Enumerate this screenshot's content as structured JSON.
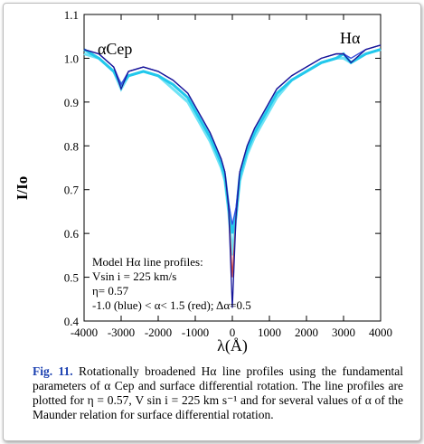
{
  "chart_data": {
    "type": "line",
    "x_label": "λ(Å)",
    "y_label": "I/Io",
    "annotations": [
      "αCep",
      "Hα"
    ],
    "note": [
      "Model Hα line profiles:",
      "Vsin i = 225 km/s",
      "η= 0.57",
      "-1.0 (blue) < α< 1.5 (red); Δα=0.5"
    ],
    "x": [
      -4000,
      -3600,
      -3200,
      -3000,
      -2800,
      -2400,
      -2000,
      -1600,
      -1200,
      -1000,
      -800,
      -600,
      -400,
      -300,
      -200,
      -100,
      0,
      100,
      200,
      300,
      400,
      600,
      800,
      1000,
      1200,
      1600,
      2000,
      2400,
      2800,
      3000,
      3200,
      3600,
      4000
    ],
    "series": [
      {
        "color": "#6fe3f5",
        "values": [
          1.01,
          1.0,
          0.97,
          0.93,
          0.96,
          0.97,
          0.96,
          0.93,
          0.9,
          0.87,
          0.84,
          0.81,
          0.77,
          0.75,
          0.72,
          0.65,
          0.55,
          0.64,
          0.72,
          0.75,
          0.78,
          0.82,
          0.85,
          0.88,
          0.91,
          0.95,
          0.97,
          0.99,
          1.0,
          1.0,
          0.99,
          1.01,
          1.02
        ]
      },
      {
        "color": "#22c8ec",
        "values": [
          1.02,
          1.0,
          0.97,
          0.94,
          0.96,
          0.97,
          0.96,
          0.94,
          0.91,
          0.88,
          0.85,
          0.82,
          0.78,
          0.76,
          0.73,
          0.66,
          0.6,
          0.64,
          0.73,
          0.76,
          0.79,
          0.83,
          0.86,
          0.89,
          0.92,
          0.95,
          0.97,
          0.99,
          1.0,
          1.01,
          0.99,
          1.01,
          1.02
        ]
      },
      {
        "color": "#c84848",
        "values": [
          1.02,
          1.01,
          0.98,
          0.94,
          0.97,
          0.98,
          0.97,
          0.95,
          0.92,
          0.89,
          0.86,
          0.83,
          0.79,
          0.77,
          0.74,
          0.66,
          0.5,
          0.64,
          0.74,
          0.77,
          0.8,
          0.84,
          0.87,
          0.9,
          0.93,
          0.96,
          0.98,
          1.0,
          1.01,
          1.01,
          1.0,
          1.02,
          1.03
        ]
      },
      {
        "color": "#3050e8",
        "values": [
          1.02,
          1.01,
          0.98,
          0.94,
          0.97,
          0.98,
          0.97,
          0.95,
          0.92,
          0.89,
          0.86,
          0.83,
          0.79,
          0.77,
          0.74,
          0.67,
          0.62,
          0.66,
          0.74,
          0.77,
          0.8,
          0.84,
          0.87,
          0.9,
          0.93,
          0.96,
          0.98,
          1.0,
          1.01,
          1.01,
          1.0,
          1.02,
          1.03
        ]
      },
      {
        "color": "#16169a",
        "values": [
          1.02,
          1.01,
          0.98,
          0.93,
          0.97,
          0.98,
          0.97,
          0.95,
          0.92,
          0.89,
          0.86,
          0.83,
          0.79,
          0.77,
          0.74,
          0.66,
          0.43,
          0.64,
          0.74,
          0.77,
          0.8,
          0.84,
          0.87,
          0.9,
          0.93,
          0.96,
          0.98,
          1.0,
          1.01,
          1.01,
          0.99,
          1.02,
          1.03
        ]
      }
    ],
    "xlim": [
      -4000,
      4000
    ],
    "xticks": [
      -4000,
      -3000,
      -2000,
      -1000,
      0,
      1000,
      2000,
      3000,
      4000
    ],
    "ylim": [
      0.4,
      1.1
    ],
    "yticks": [
      0.4,
      0.5,
      0.6,
      0.7,
      0.8,
      0.9,
      {
        "value": 1,
        "label": "1.0"
      },
      1.1
    ]
  },
  "caption": {
    "label": "Fig. 11.",
    "text": "Rotationally broadened Hα line profiles using the fundamental parameters of α Cep and surface differential rotation. The line profiles are plotted for η = 0.57, V sin i = 225 km s⁻¹ and for several values of α of the Maunder relation for surface differential rotation."
  }
}
